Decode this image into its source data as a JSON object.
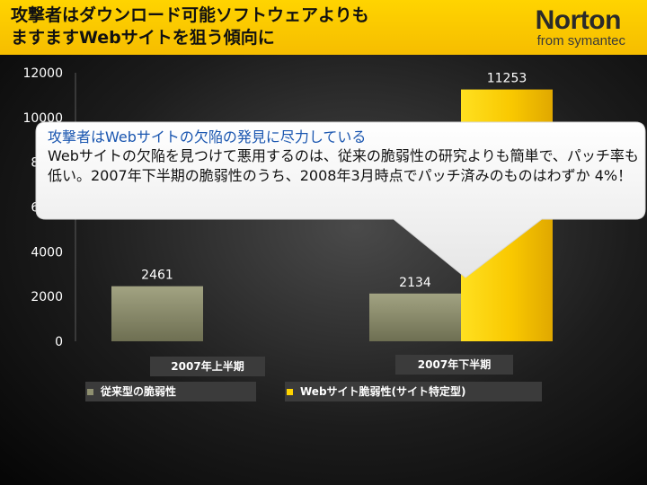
{
  "header": {
    "title_line1": "攻撃者はダウンロード可能ソフトウェアよりも",
    "title_line2": "ますますWebサイトを狙う傾向に",
    "logo_name": "Norton",
    "logo_sub": "from symantec"
  },
  "colors": {
    "header_bg": "#ffd400",
    "series_traditional": "#8f9070",
    "series_web": "#ffd400",
    "callout_heading": "#1a56b0"
  },
  "chart_data": {
    "type": "bar",
    "categories": [
      "2007年上半期",
      "2007年下半期"
    ],
    "series": [
      {
        "name": "従来型の脆弱性",
        "values": [
          2461,
          2134
        ]
      },
      {
        "name": "Webサイト脆弱性(サイト特定型)",
        "values": [
          null,
          11253
        ]
      }
    ],
    "data_labels": [
      [
        "2461",
        "2134"
      ],
      [
        "",
        "11253"
      ]
    ],
    "yticks": [
      "12000",
      "10000",
      "8000",
      "6000",
      "4000",
      "2000",
      "0"
    ],
    "ylim": [
      0,
      12000
    ],
    "legend_position": "bottom",
    "grid": false
  },
  "callout": {
    "heading": "攻撃者はWebサイトの欠陥の発見に尽力している",
    "body": "Webサイトの欠陥を見つけて悪用するのは、従来の脆弱性の研究よりも簡単で、パッチ率も低い。2007年下半期の脆弱性のうち、2008年3月時点でパッチ済みのものはわずか 4%！"
  }
}
